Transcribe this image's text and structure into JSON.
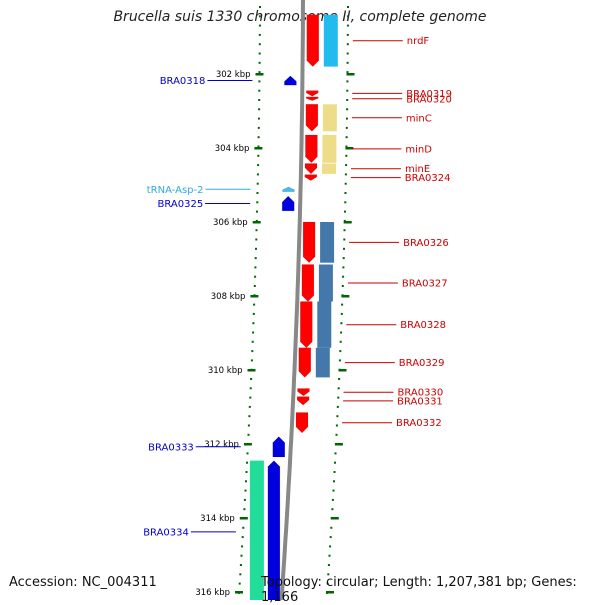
{
  "title": "Brucella suis 1330 chromosome II, complete genome",
  "footer": {
    "accession": "Accession: NC_004311",
    "topology": "Topology: circular; Length: 1,207,381 bp; Genes: 1,166"
  },
  "scale": {
    "unit": "kbp",
    "ticks": [
      {
        "value": 302,
        "label": "302 kbp"
      },
      {
        "value": 304,
        "label": "304 kbp"
      },
      {
        "value": 306,
        "label": "306 kbp"
      },
      {
        "value": 308,
        "label": "308 kbp"
      },
      {
        "value": 310,
        "label": "310 kbp"
      },
      {
        "value": 312,
        "label": "312 kbp"
      },
      {
        "value": 314,
        "label": "314 kbp"
      },
      {
        "value": 316,
        "label": "316 kbp"
      }
    ]
  },
  "colors": {
    "forward_gene": "#0000dd",
    "reverse_gene": "#ff0000",
    "trna": "#44bbee",
    "forward_label": "#0000cc",
    "reverse_label": "#cc0000",
    "trna_label": "#33aadd",
    "backbone": "#888888",
    "tick": "#006600"
  },
  "features": [
    {
      "name": "nrdF",
      "strand": "reverse",
      "start_kbp": 300.4,
      "end_kbp": 301.8,
      "cog_color": "#22bbee"
    },
    {
      "name": "BRA0318",
      "strand": "forward",
      "start_kbp": 302.05,
      "end_kbp": 302.3,
      "cog_color": ""
    },
    {
      "name": "BRA0319",
      "strand": "reverse",
      "start_kbp": 302.45,
      "end_kbp": 302.6,
      "cog_color": ""
    },
    {
      "name": "BRA0320",
      "strand": "reverse",
      "start_kbp": 302.62,
      "end_kbp": 302.72,
      "cog_color": ""
    },
    {
      "name": "minC",
      "strand": "reverse",
      "start_kbp": 302.82,
      "end_kbp": 303.55,
      "cog_color": "#eedd88"
    },
    {
      "name": "minD",
      "strand": "reverse",
      "start_kbp": 303.65,
      "end_kbp": 304.4,
      "cog_color": "#eedd88"
    },
    {
      "name": "minE",
      "strand": "reverse",
      "start_kbp": 304.42,
      "end_kbp": 304.7,
      "cog_color": "#eedd88"
    },
    {
      "name": "BRA0324",
      "strand": "reverse",
      "start_kbp": 304.72,
      "end_kbp": 304.88,
      "cog_color": ""
    },
    {
      "name": "tRNA-Asp-2",
      "strand": "forward",
      "start_kbp": 305.05,
      "end_kbp": 305.18,
      "cog_color": ""
    },
    {
      "name": "BRA0325",
      "strand": "forward",
      "start_kbp": 305.3,
      "end_kbp": 305.7,
      "cog_color": ""
    },
    {
      "name": "BRA0326",
      "strand": "reverse",
      "start_kbp": 306.0,
      "end_kbp": 307.1,
      "cog_color": "#4477aa"
    },
    {
      "name": "BRA0327",
      "strand": "reverse",
      "start_kbp": 307.15,
      "end_kbp": 308.15,
      "cog_color": "#4477aa"
    },
    {
      "name": "BRA0328",
      "strand": "reverse",
      "start_kbp": 308.15,
      "end_kbp": 309.4,
      "cog_color": "#4477aa"
    },
    {
      "name": "BRA0329",
      "strand": "reverse",
      "start_kbp": 309.4,
      "end_kbp": 310.2,
      "cog_color": "#4477aa"
    },
    {
      "name": "BRA0330",
      "strand": "reverse",
      "start_kbp": 310.5,
      "end_kbp": 310.7,
      "cog_color": ""
    },
    {
      "name": "BRA0331",
      "strand": "reverse",
      "start_kbp": 310.72,
      "end_kbp": 310.95,
      "cog_color": ""
    },
    {
      "name": "BRA0332",
      "strand": "reverse",
      "start_kbp": 311.15,
      "end_kbp": 311.7,
      "cog_color": ""
    },
    {
      "name": "BRA0333",
      "strand": "forward",
      "start_kbp": 311.8,
      "end_kbp": 312.35,
      "cog_color": ""
    },
    {
      "name": "BRA0334",
      "strand": "forward",
      "start_kbp": 312.45,
      "end_kbp": 316.3,
      "cog_color": "#22dd99"
    }
  ]
}
